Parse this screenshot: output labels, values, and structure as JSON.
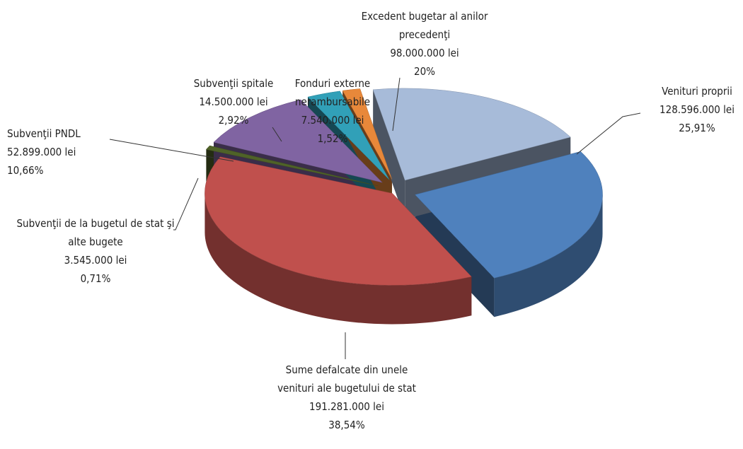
{
  "chart_data": {
    "type": "pie",
    "categories": [
      "Venituri proprii",
      "Sume defalcate din unele venituri ale bugetului de stat",
      "Subvenţii de la bugetul de stat şi alte bugete",
      "Subvenţii PNDL",
      "Subvenţii spitale",
      "Fonduri externe nerambursabile",
      "Excedent bugetar al anilor precedenţi"
    ],
    "values": [
      25.91,
      38.54,
      0.71,
      10.66,
      2.92,
      1.52,
      20
    ],
    "value_labels": [
      "25,91%",
      "38,54%",
      "0,71%",
      "10,66%",
      "2,92%",
      "1,52%",
      "20%"
    ],
    "amounts": [
      128596000,
      191281000,
      3545000,
      52899000,
      14500000,
      7540000,
      98000000
    ],
    "amount_labels": [
      "128.596.000 lei",
      "191.281.000 lei",
      "3.545.000 lei",
      "52.899.000 lei",
      "14.500.000 lei",
      "7.540.000 lei",
      "98.000.000 lei"
    ],
    "colors": [
      "#4f81bd",
      "#c0504d",
      "#4f6228",
      "#8064a2",
      "#31a0b8",
      "#e8883a",
      "#a7bbd9"
    ]
  }
}
